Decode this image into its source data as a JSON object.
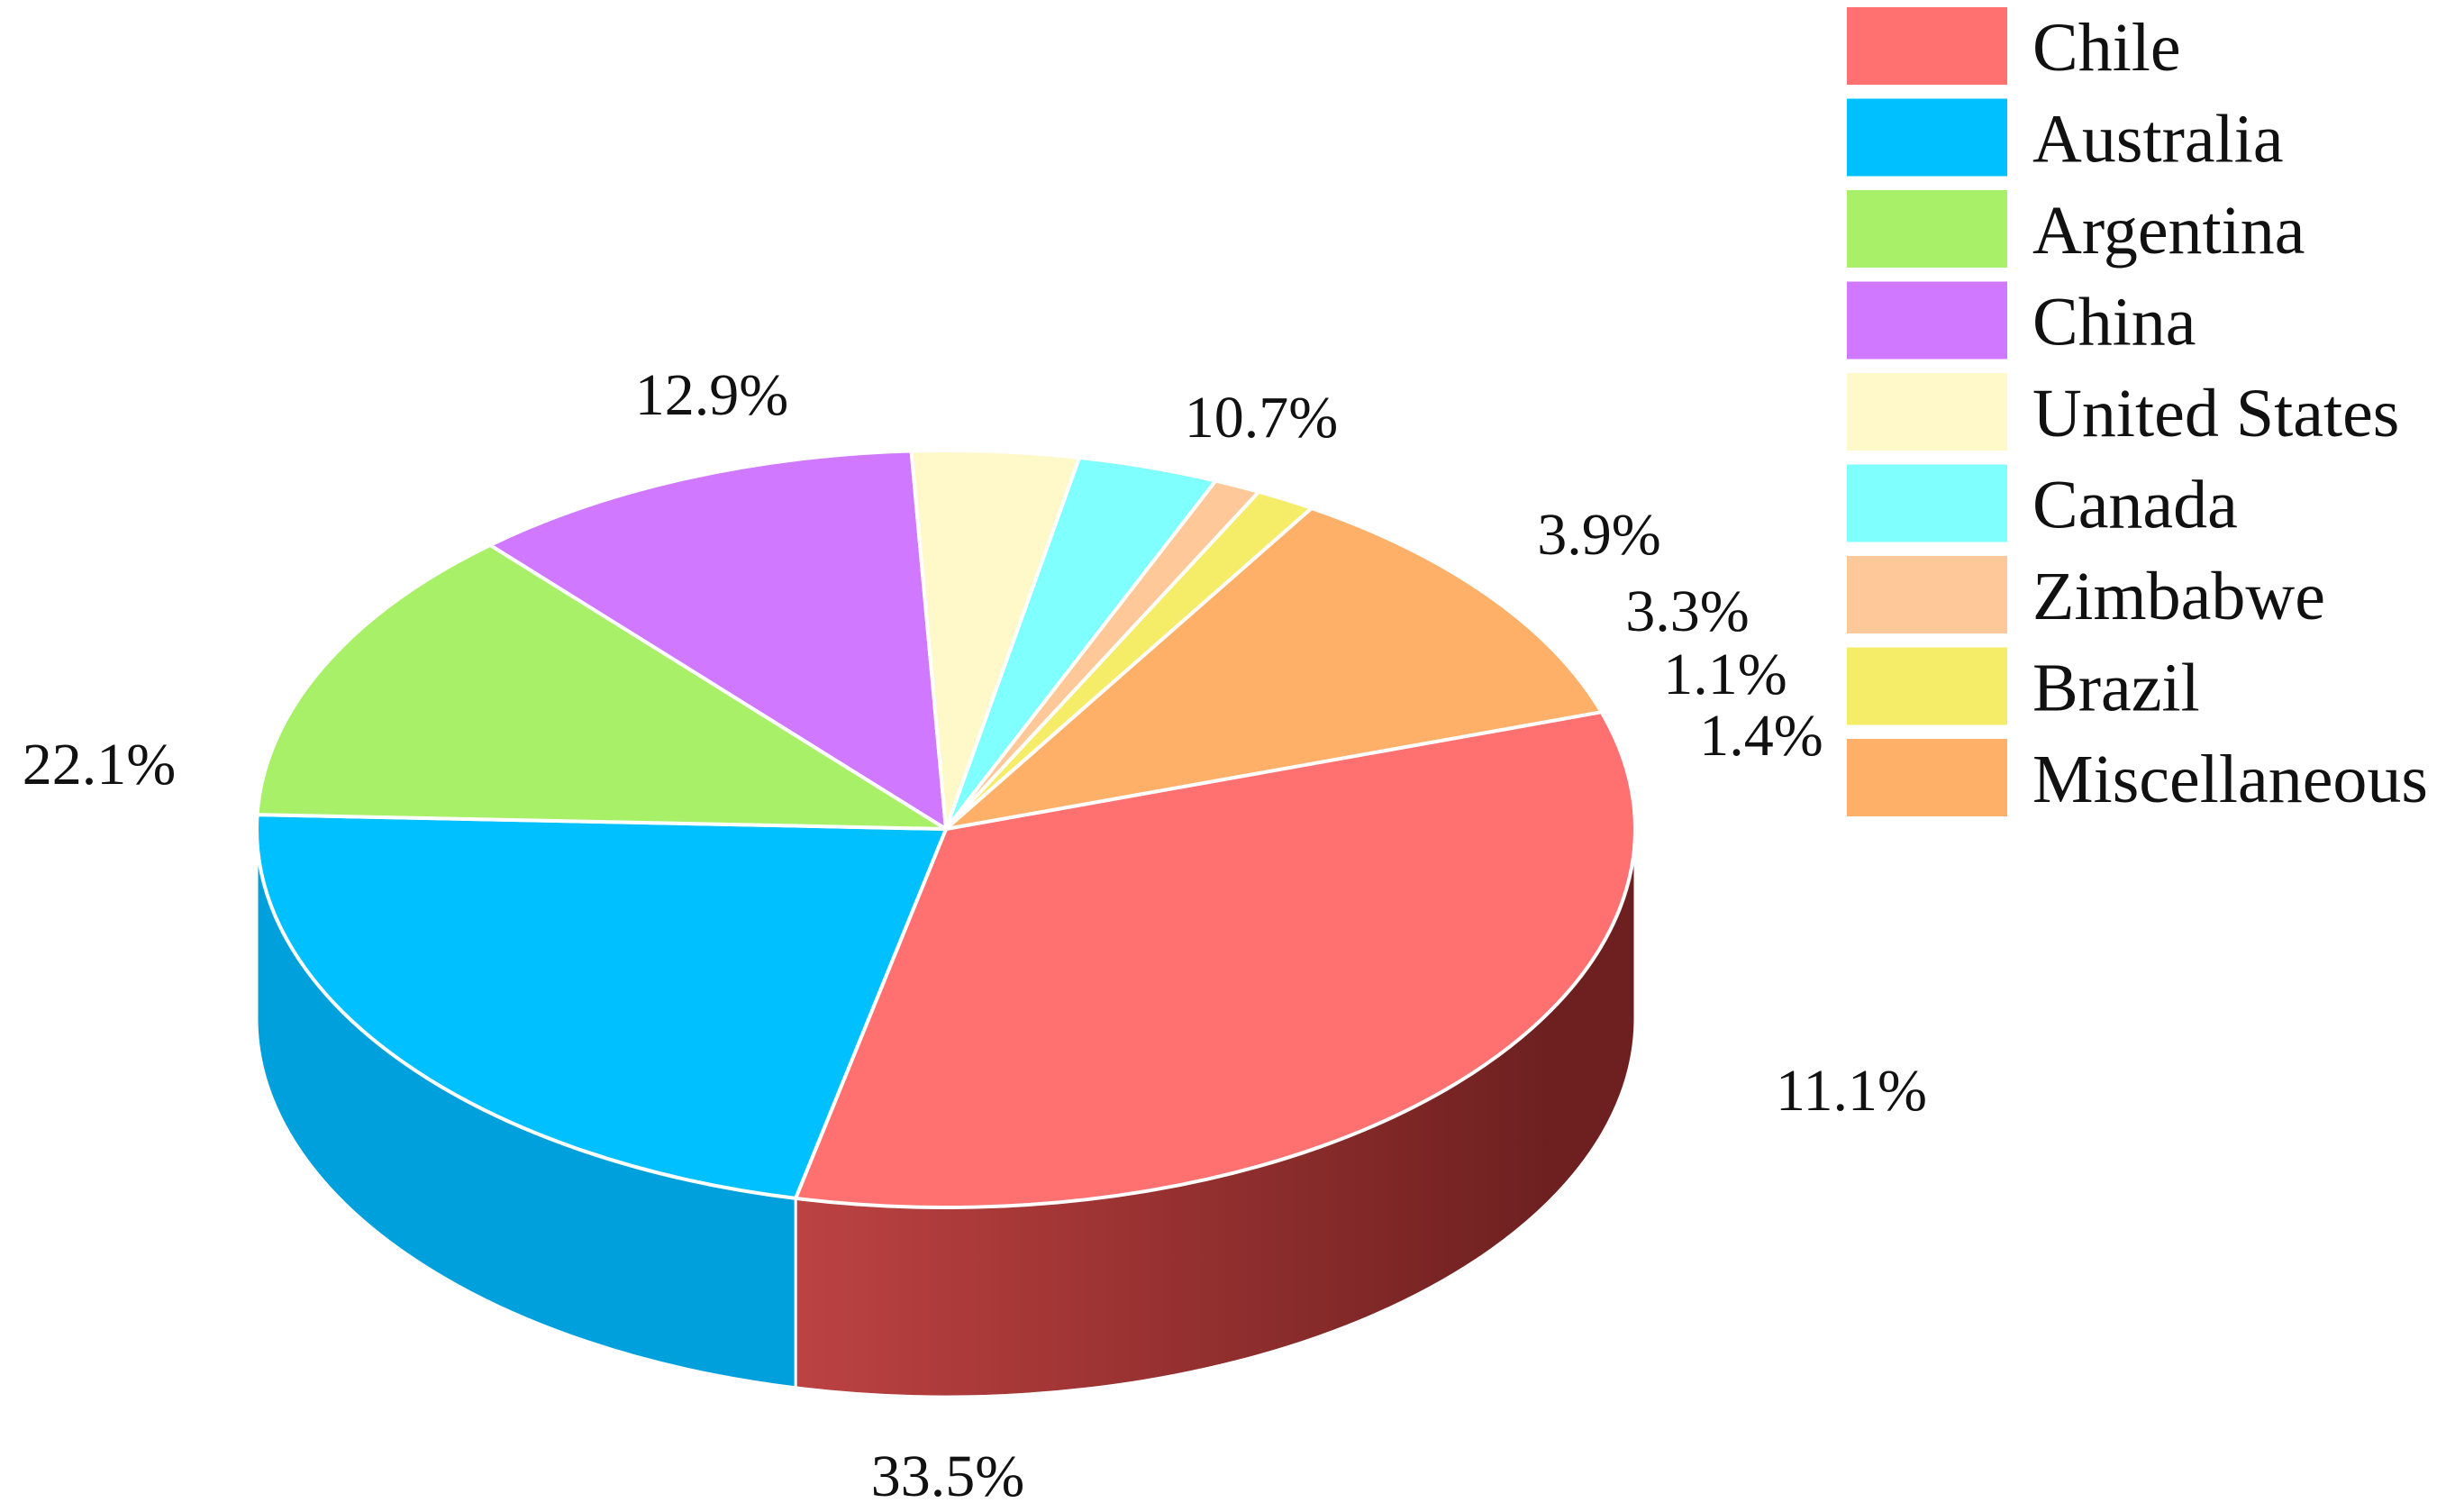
{
  "chart_data": {
    "type": "pie",
    "style": "3d",
    "title": "",
    "legend": {
      "position": "top-right"
    },
    "slices": [
      {
        "name": "Chile",
        "value": 33.5,
        "label": "33.5%",
        "color": "#FF7070",
        "side": "#E05050"
      },
      {
        "name": "Australia",
        "value": 22.1,
        "label": "22.1%",
        "color": "#00C0FF",
        "side": "#00A0DC"
      },
      {
        "name": "Argentina",
        "value": 12.9,
        "label": "12.9%",
        "color": "#A8F068",
        "side": "#88D048"
      },
      {
        "name": "China",
        "value": 10.7,
        "label": "10.7%",
        "color": "#D078FF",
        "side": "#A858D8"
      },
      {
        "name": "United States",
        "value": 3.9,
        "label": "3.9%",
        "color": "#FFF8C8",
        "side": "#E0D8A8"
      },
      {
        "name": "Canada",
        "value": 3.3,
        "label": "3.3%",
        "color": "#80FFFF",
        "side": "#60D8D8"
      },
      {
        "name": "Zimbabwe",
        "value": 1.1,
        "label": "1.1%",
        "color": "#FFC898",
        "side": "#D8A070"
      },
      {
        "name": "Brazil",
        "value": 1.4,
        "label": "1.4%",
        "color": "#F5EC68",
        "side": "#D0C848"
      },
      {
        "name": "Miscellaneous",
        "value": 11.1,
        "label": "11.1%",
        "color": "#FFB068",
        "side": "#704020"
      }
    ]
  }
}
